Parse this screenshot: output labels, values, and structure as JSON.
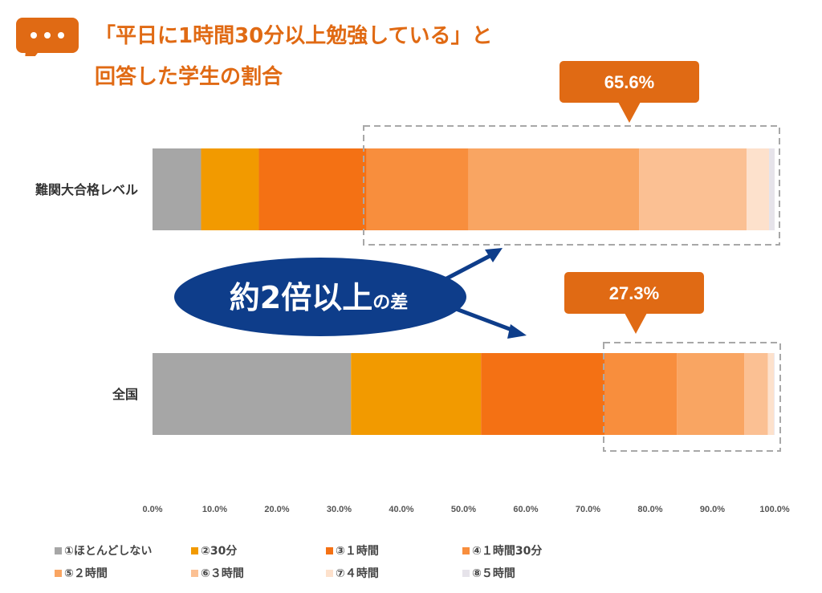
{
  "header": {
    "title_line1": "「平日に1時間30分以上勉強している」と",
    "title_line2": "回答した学生の割合"
  },
  "callouts": {
    "top": "65.6%",
    "bottom": "27.3%",
    "center_main": "約2倍以上",
    "center_sub": "の差"
  },
  "colors": {
    "title": "#e06a14",
    "callout": "#e06a14",
    "ellipse": "#0e3d8a",
    "dashed_box": "#a8a8a8"
  },
  "chart_data": {
    "type": "bar",
    "orientation": "horizontal",
    "stacked": true,
    "categories": [
      "難関大合格レベル",
      "全国"
    ],
    "series": [
      {
        "name": "①ほとんどしない",
        "color": "#a6a6a6",
        "values": [
          7.8,
          31.9
        ]
      },
      {
        "name": "②30分",
        "color": "#f29a00",
        "values": [
          9.3,
          20.9
        ]
      },
      {
        "name": "③１時間",
        "color": "#f47114",
        "values": [
          17.3,
          19.9
        ]
      },
      {
        "name": "④１時間30分",
        "color": "#f88e3d",
        "values": [
          16.4,
          11.6
        ]
      },
      {
        "name": "⑤２時間",
        "color": "#f9a562",
        "values": [
          27.4,
          10.8
        ]
      },
      {
        "name": "⑥３時間",
        "color": "#fbc093",
        "values": [
          17.3,
          3.8
        ]
      },
      {
        "name": "⑦４時間",
        "color": "#fde1cc",
        "values": [
          3.6,
          1.0
        ]
      },
      {
        "name": "⑧５時間",
        "color": "#e6e3ea",
        "values": [
          0.9,
          0.1
        ]
      }
    ],
    "xlim": [
      0,
      100
    ],
    "xticks": [
      "0.0%",
      "10.0%",
      "20.0%",
      "30.0%",
      "40.0%",
      "50.0%",
      "60.0%",
      "70.0%",
      "80.0%",
      "90.0%",
      "100.0%"
    ],
    "grid": false,
    "legend": "bottom"
  }
}
